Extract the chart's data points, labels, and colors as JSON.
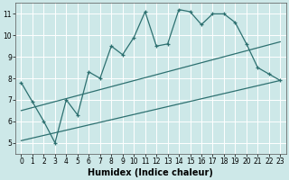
{
  "xlabel": "Humidex (Indice chaleur)",
  "bg_color": "#cde8e8",
  "grid_color": "#ffffff",
  "line_color": "#2d7070",
  "x_data": [
    0,
    1,
    2,
    3,
    4,
    5,
    6,
    7,
    8,
    9,
    10,
    11,
    12,
    13,
    14,
    15,
    16,
    17,
    18,
    19,
    20,
    21,
    22,
    23
  ],
  "main_y": [
    7.8,
    6.9,
    6.0,
    5.0,
    7.0,
    6.3,
    8.3,
    8.0,
    9.5,
    9.1,
    9.9,
    11.1,
    9.5,
    9.6,
    11.2,
    11.1,
    10.5,
    11.0,
    11.0,
    10.6,
    9.6,
    8.5,
    8.2,
    7.9
  ],
  "line1_x": [
    0,
    23
  ],
  "line1_y": [
    5.1,
    7.9
  ],
  "line2_x": [
    0,
    23
  ],
  "line2_y": [
    6.5,
    9.7
  ],
  "xlim": [
    -0.5,
    23.5
  ],
  "ylim": [
    4.5,
    11.5
  ],
  "yticks": [
    5,
    6,
    7,
    8,
    9,
    10,
    11
  ],
  "xticks": [
    0,
    1,
    2,
    3,
    4,
    5,
    6,
    7,
    8,
    9,
    10,
    11,
    12,
    13,
    14,
    15,
    16,
    17,
    18,
    19,
    20,
    21,
    22,
    23
  ],
  "tick_fontsize": 5.5,
  "xlabel_fontsize": 7.0,
  "marker_size": 3.5,
  "linewidth": 0.9
}
